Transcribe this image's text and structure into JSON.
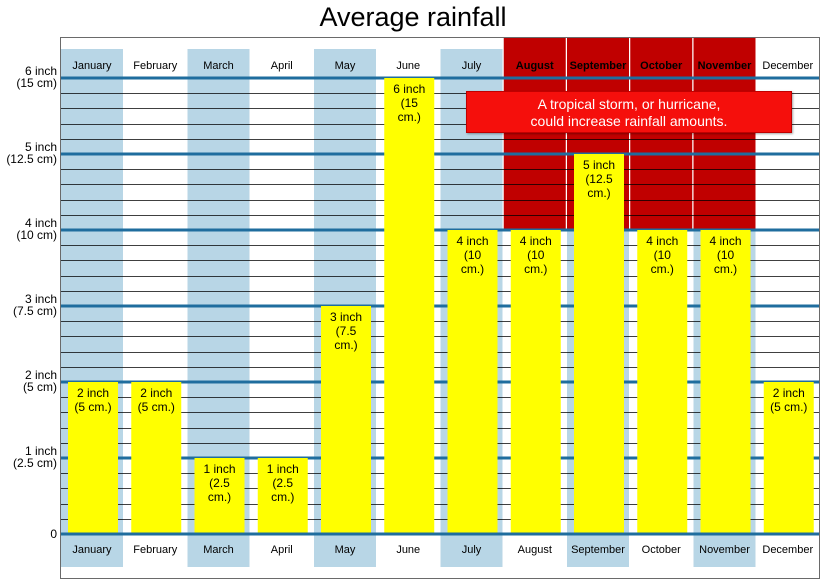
{
  "title": "Average rainfall",
  "annotation": "A tropical storm, or hurricane,\ncould increase rainfall amounts.",
  "colors": {
    "rain_bar": "#ffff00",
    "storm_band": "#c00000",
    "wet_month_band": "#b8d6e6",
    "major_grid": "#1f6d9e",
    "minor_grid": "#000000",
    "note_box": "#f50f0c"
  },
  "chart_data": {
    "type": "bar",
    "title": "Average rainfall",
    "categories": [
      "January",
      "February",
      "March",
      "April",
      "May",
      "June",
      "July",
      "August",
      "September",
      "October",
      "November",
      "December"
    ],
    "values": [
      2,
      2,
      1,
      1,
      3,
      6,
      4,
      4,
      5,
      4,
      4,
      2
    ],
    "unit": "inch",
    "value_labels": [
      "2 inch\n(5 cm.)",
      "2 inch\n(5 cm.)",
      "1 inch\n(2.5\ncm.)",
      "1 inch\n(2.5\ncm.)",
      "3 inch\n(7.5\ncm.)",
      "6 inch\n(15\ncm.)",
      "4 inch\n(10\ncm.)",
      "4 inch\n(10\ncm.)",
      "5 inch\n(12.5\ncm.)",
      "4 inch\n(10\ncm.)",
      "4 inch\n(10\ncm.)",
      "2 inch\n(5 cm.)"
    ],
    "ylim": [
      0,
      6
    ],
    "y_ticks": [
      {
        "value": 0,
        "label": "0"
      },
      {
        "value": 1,
        "label": "1 inch\n(2.5 cm)"
      },
      {
        "value": 2,
        "label": "2 inch\n(5 cm)"
      },
      {
        "value": 3,
        "label": "3 inch\n(7.5 cm)"
      },
      {
        "value": 4,
        "label": "4 inch\n(10 cm)"
      },
      {
        "value": 5,
        "label": "5 inch\n(12.5 cm)"
      },
      {
        "value": 6,
        "label": "6 inch\n(15 cm)"
      }
    ],
    "minor_grid_step": 0.2,
    "wet_season_months": [
      "January",
      "March",
      "May",
      "July",
      "September",
      "November"
    ],
    "storm_season_months": [
      "August",
      "September",
      "October",
      "November"
    ],
    "storm_band_from": 4,
    "grid": true
  }
}
